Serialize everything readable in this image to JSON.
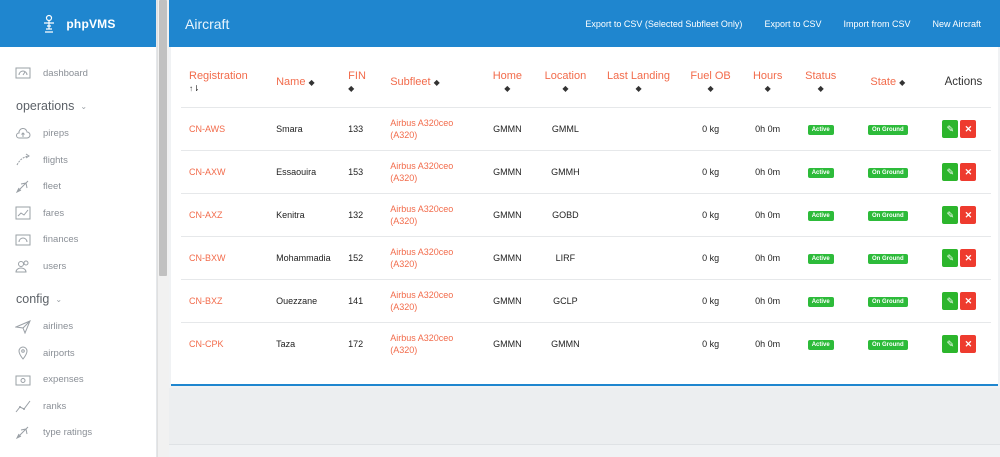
{
  "brand": {
    "name": "phpVMS"
  },
  "sidebar": {
    "top": [
      {
        "label": "dashboard",
        "icon": "speedometer-icon"
      }
    ],
    "sections": [
      {
        "label": "operations",
        "items": [
          {
            "label": "pireps",
            "icon": "cloud-upload-icon"
          },
          {
            "label": "flights",
            "icon": "flight-path-icon"
          },
          {
            "label": "fleet",
            "icon": "plane-icon"
          },
          {
            "label": "fares",
            "icon": "chart-line-icon"
          },
          {
            "label": "finances",
            "icon": "money-icon"
          },
          {
            "label": "users",
            "icon": "users-icon"
          }
        ]
      },
      {
        "label": "config",
        "items": [
          {
            "label": "airlines",
            "icon": "paper-plane-icon"
          },
          {
            "label": "airports",
            "icon": "map-pin-icon"
          },
          {
            "label": "expenses",
            "icon": "cash-icon"
          },
          {
            "label": "ranks",
            "icon": "graph-icon"
          },
          {
            "label": "type ratings",
            "icon": "plane-icon"
          }
        ]
      }
    ]
  },
  "header": {
    "title": "Aircraft",
    "actions": [
      "Export to CSV (Selected Subfleet Only)",
      "Export to CSV",
      "Import from CSV",
      "New Aircraft"
    ]
  },
  "table": {
    "columns": {
      "registration": "Registration",
      "name": "Name",
      "fin": "FIN",
      "subfleet": "Subfleet",
      "home": "Home",
      "location": "Location",
      "last_landing": "Last Landing",
      "fuel_ob": "Fuel OB",
      "hours": "Hours",
      "status": "Status",
      "state": "State",
      "actions": "Actions"
    },
    "sort_glyphs": {
      "sorted": "↑⇂",
      "sortable": "◆"
    },
    "rows": [
      {
        "registration": "CN-AWS",
        "name": "Smara",
        "fin": "133",
        "subfleet_1": "Airbus A320ceo",
        "subfleet_2": "(A320)",
        "home": "GMMN",
        "location": "GMML",
        "last_landing": "",
        "fuel_ob": "0 kg",
        "hours": "0h 0m",
        "status": "Active",
        "state": "On Ground"
      },
      {
        "registration": "CN-AXW",
        "name": "Essaouira",
        "fin": "153",
        "subfleet_1": "Airbus A320ceo",
        "subfleet_2": "(A320)",
        "home": "GMMN",
        "location": "GMMH",
        "last_landing": "",
        "fuel_ob": "0 kg",
        "hours": "0h 0m",
        "status": "Active",
        "state": "On Ground"
      },
      {
        "registration": "CN-AXZ",
        "name": "Kenitra",
        "fin": "132",
        "subfleet_1": "Airbus A320ceo",
        "subfleet_2": "(A320)",
        "home": "GMMN",
        "location": "GOBD",
        "last_landing": "",
        "fuel_ob": "0 kg",
        "hours": "0h 0m",
        "status": "Active",
        "state": "On Ground"
      },
      {
        "registration": "CN-BXW",
        "name": "Mohammadia",
        "fin": "152",
        "subfleet_1": "Airbus A320ceo",
        "subfleet_2": "(A320)",
        "home": "GMMN",
        "location": "LIRF",
        "last_landing": "",
        "fuel_ob": "0 kg",
        "hours": "0h 0m",
        "status": "Active",
        "state": "On Ground"
      },
      {
        "registration": "CN-BXZ",
        "name": "Ouezzane",
        "fin": "141",
        "subfleet_1": "Airbus A320ceo",
        "subfleet_2": "(A320)",
        "home": "GMMN",
        "location": "GCLP",
        "last_landing": "",
        "fuel_ob": "0 kg",
        "hours": "0h 0m",
        "status": "Active",
        "state": "On Ground"
      },
      {
        "registration": "CN-CPK",
        "name": "Taza",
        "fin": "172",
        "subfleet_1": "Airbus A320ceo",
        "subfleet_2": "(A320)",
        "home": "GMMN",
        "location": "GMMN",
        "last_landing": "",
        "fuel_ob": "0 kg",
        "hours": "0h 0m",
        "status": "Active",
        "state": "On Ground"
      }
    ]
  },
  "colors": {
    "primary": "#1f86cf",
    "accent": "#f26b4b",
    "success": "#2dbb3a",
    "danger": "#ee3b2e"
  }
}
